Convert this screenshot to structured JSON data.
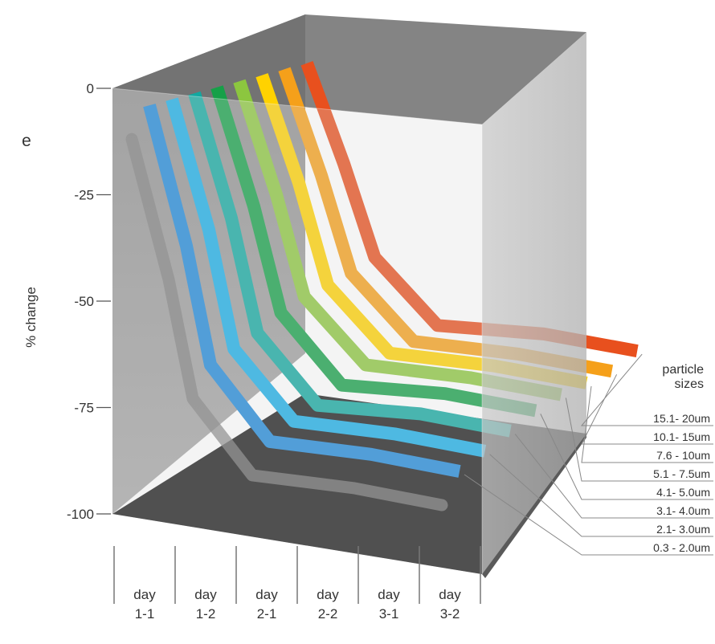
{
  "chart_data": {
    "type": "line",
    "title": "",
    "stray_label": "e",
    "ylabel": "% change",
    "ylim": [
      -100,
      0
    ],
    "yticks": [
      0,
      -25,
      -50,
      -75,
      -100
    ],
    "categories": [
      [
        "day",
        "1-1"
      ],
      [
        "day",
        "1-2"
      ],
      [
        "day",
        "2-1"
      ],
      [
        "day",
        "2-2"
      ],
      [
        "day",
        "3-1"
      ],
      [
        "day",
        "3-2"
      ]
    ],
    "legend_title": [
      "particle",
      "sizes"
    ],
    "series": [
      {
        "name": "0.3 - 2.0um",
        "color": "#1f88d8",
        "values": [
          -4,
          -37,
          -65,
          -83,
          -86,
          -90
        ]
      },
      {
        "name": "2.1- 3.0um",
        "color": "#19aee6",
        "values": [
          -4,
          -34,
          -62,
          -79,
          -82,
          -86
        ]
      },
      {
        "name": "3.1- 4.0um",
        "color": "#12a8a0",
        "values": [
          -4,
          -32,
          -59,
          -76,
          -78,
          -82
        ]
      },
      {
        "name": "4.1- 5.0um",
        "color": "#16a048",
        "values": [
          -4,
          -30,
          -55,
          -72,
          -74,
          -78
        ]
      },
      {
        "name": "5.1 - 7.5um",
        "color": "#8cc63f",
        "values": [
          -4,
          -28,
          -52,
          -68,
          -71,
          -75
        ]
      },
      {
        "name": "7.6 - 10um",
        "color": "#ffd200",
        "values": [
          -4,
          -26,
          -50,
          -66,
          -69,
          -73
        ]
      },
      {
        "name": "10.1- 15um",
        "color": "#f5a01a",
        "values": [
          -4,
          -25,
          -48,
          -64,
          -67,
          -71
        ]
      },
      {
        "name": "15.1- 20um",
        "color": "#e8501e",
        "values": [
          -4,
          -23,
          -45,
          -61,
          -63,
          -67
        ]
      }
    ],
    "shadow_color": "#7a7a7a"
  }
}
